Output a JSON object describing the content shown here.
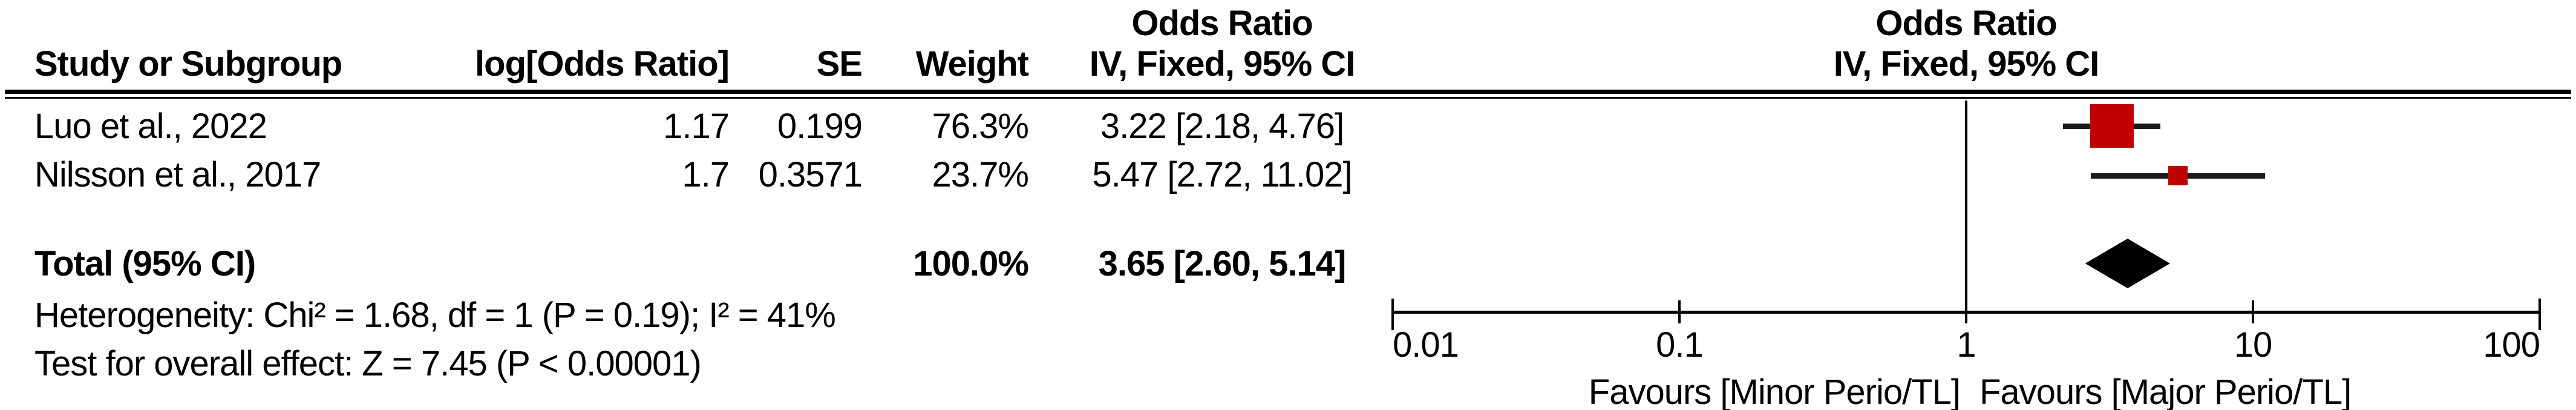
{
  "columns": {
    "effect_title": "Odds Ratio",
    "study": "Study or Subgroup",
    "log_or": "log[Odds Ratio]",
    "se": "SE",
    "weight": "Weight",
    "ci": "IV, Fixed, 95% CI"
  },
  "plot_header": {
    "title": "Odds Ratio",
    "subtitle": "IV, Fixed, 95% CI"
  },
  "chart_data": {
    "type": "forest",
    "effect_measure": "Odds Ratio",
    "model": "IV, Fixed, 95% CI",
    "x_scale": "log",
    "axis": {
      "ticks": [
        0.01,
        0.1,
        1,
        10,
        100
      ],
      "tick_labels": [
        "0.01",
        "0.1",
        "1",
        "10",
        "100"
      ],
      "xmin": 0.01,
      "xmax": 100,
      "null_line": 1
    },
    "studies": [
      {
        "study": "Luo et al., 2022",
        "log_or": "1.17",
        "se": "0.199",
        "weight": "76.3%",
        "weight_pct": 76.3,
        "ci_text": "3.22 [2.18, 4.76]",
        "or": 3.22,
        "ci_low": 2.18,
        "ci_high": 4.76
      },
      {
        "study": "Nilsson et al., 2017",
        "log_or": "1.7",
        "se": "0.3571",
        "weight": "23.7%",
        "weight_pct": 23.7,
        "ci_text": "5.47 [2.72, 11.02]",
        "or": 5.47,
        "ci_low": 2.72,
        "ci_high": 11.02
      }
    ],
    "total": {
      "label": "Total (95% CI)",
      "weight": "100.0%",
      "ci_text": "3.65 [2.60, 5.14]",
      "or": 3.65,
      "ci_low": 2.6,
      "ci_high": 5.14
    },
    "heterogeneity": "Heterogeneity: Chi² = 1.68, df = 1 (P = 0.19); I² = 41%",
    "overall_effect": "Test for overall effect: Z = 7.45 (P < 0.00001)",
    "favours_left": "Favours [Minor Perio/TL]",
    "favours_right": "Favours [Major Perio/TL]",
    "colors": {
      "marker": "#c00000",
      "ci_line": "#1a1a1a",
      "diamond": "#000000",
      "axis": "#000000"
    }
  }
}
